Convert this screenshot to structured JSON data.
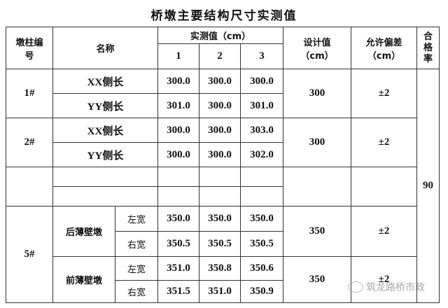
{
  "title": "桥墩主要结构尺寸实测值",
  "header": {
    "pier_no": "墩柱编号",
    "name": "名称",
    "measured": "实测值（cm）",
    "m1": "1",
    "m2": "2",
    "m3": "3",
    "design": "设计值（cm）",
    "tolerance": "允许偏差（cm）",
    "pass_rate": "合格率"
  },
  "pass_rate_value": "90",
  "groups": [
    {
      "pier": "1#",
      "rows": [
        {
          "name": "XX侧长",
          "v": [
            "300.0",
            "300.0",
            "300.0"
          ]
        },
        {
          "name": "YY侧长",
          "v": [
            "301.0",
            "300.0",
            "301.0"
          ]
        }
      ],
      "design": "300",
      "tolerance": "±2"
    },
    {
      "pier": "2#",
      "rows": [
        {
          "name": "XX侧长",
          "v": [
            "300.0",
            "300.0",
            "303.0"
          ]
        },
        {
          "name": "YY侧长",
          "v": [
            "300.0",
            "300.0",
            "302.0"
          ]
        }
      ],
      "design": "300",
      "tolerance": "±2"
    }
  ],
  "pier5": {
    "pier": "5#",
    "parts": [
      {
        "name": "后薄壁墩",
        "rows": [
          {
            "side": "左宽",
            "v": [
              "350.0",
              "350.0",
              "350.0"
            ]
          },
          {
            "side": "右宽",
            "v": [
              "350.5",
              "350.5",
              "350.5"
            ]
          }
        ],
        "design": "350",
        "tolerance": "±2"
      },
      {
        "name": "前薄壁墩",
        "rows": [
          {
            "side": "左宽",
            "v": [
              "351.0",
              "350.8",
              "350.6"
            ]
          },
          {
            "side": "右宽",
            "v": [
              "351.5",
              "351.0",
              "350.9"
            ]
          }
        ],
        "design": "350",
        "tolerance": "±2"
      }
    ]
  },
  "watermark": "筑龙路桥市政"
}
